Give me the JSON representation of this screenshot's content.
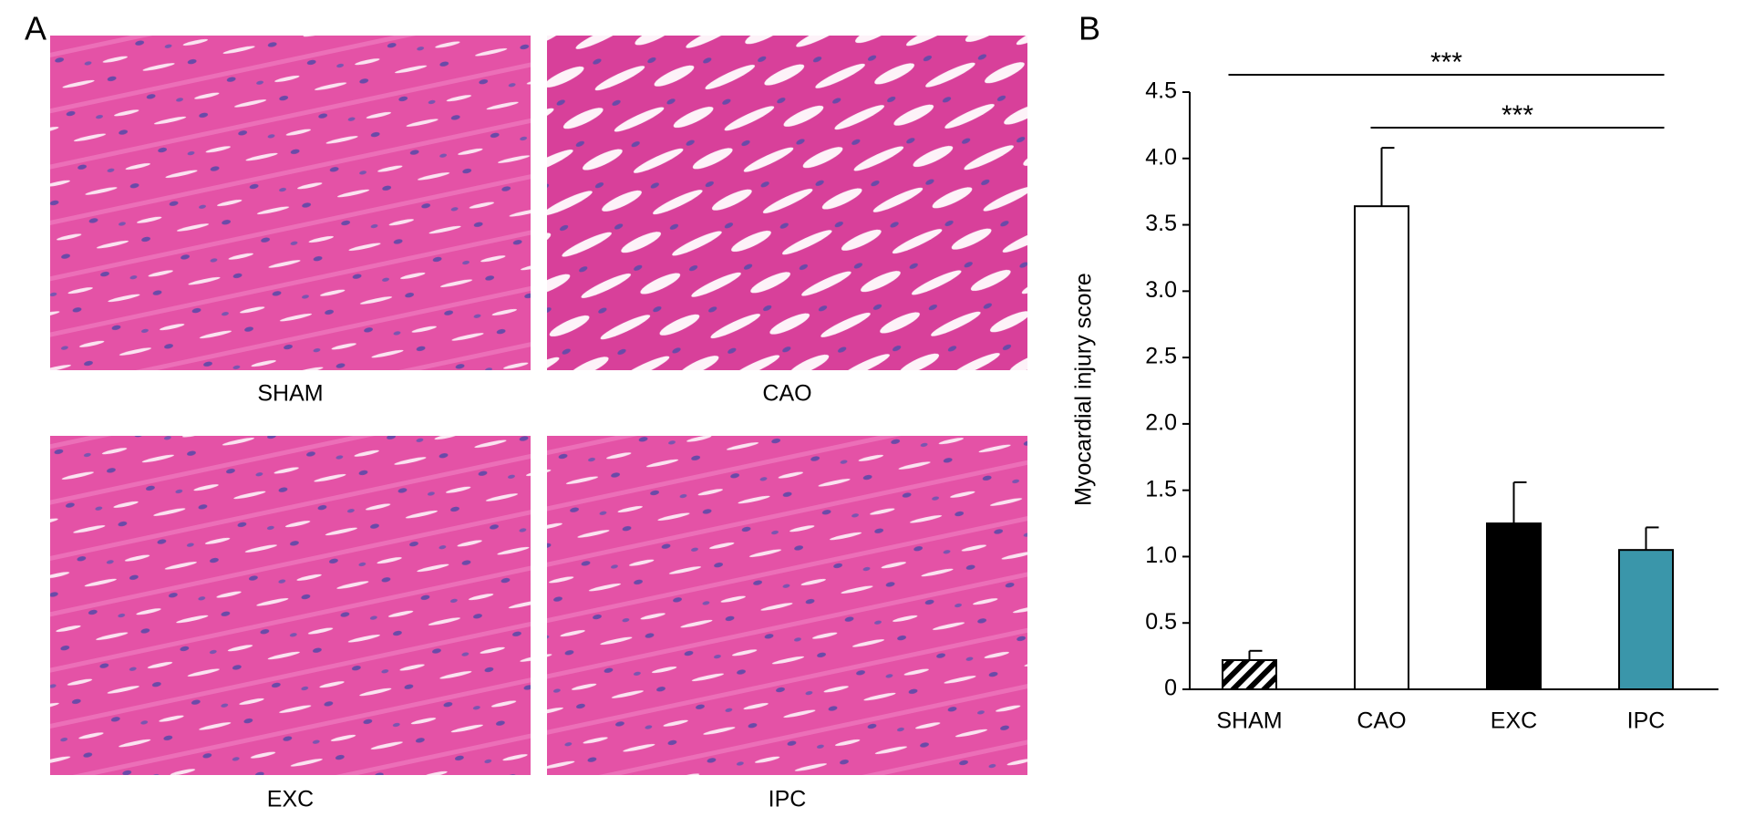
{
  "panel_a": {
    "label": "A",
    "images": [
      {
        "label": "SHAM"
      },
      {
        "label": "CAO"
      },
      {
        "label": "EXC"
      },
      {
        "label": "IPC"
      }
    ]
  },
  "chart_data": {
    "type": "bar",
    "panel_label": "B",
    "y_label": "Myocardial injury score",
    "categories": [
      "SHAM",
      "CAO",
      "EXC",
      "IPC"
    ],
    "values": [
      0.22,
      3.64,
      1.25,
      1.05
    ],
    "errors": [
      0.07,
      0.44,
      0.31,
      0.17
    ],
    "colors": [
      "#ffffff",
      "#ffffff",
      "#000000",
      "#3a96aa"
    ],
    "hatched": [
      true,
      false,
      false,
      false
    ],
    "ylim": [
      0,
      4.5
    ],
    "yticks": [
      0,
      0.5,
      {
        "value": 1,
        "label": "1.0"
      },
      1.5,
      {
        "value": 2,
        "label": "2.0"
      },
      2.5,
      {
        "value": 3,
        "label": "3.0"
      },
      3.5,
      {
        "value": 4,
        "label": "4.0"
      },
      4.5
    ],
    "significance": [
      {
        "label": "***",
        "from": "SHAM",
        "to": "IPC"
      },
      {
        "label": "***",
        "from": "CAO",
        "to": "IPC"
      }
    ]
  }
}
